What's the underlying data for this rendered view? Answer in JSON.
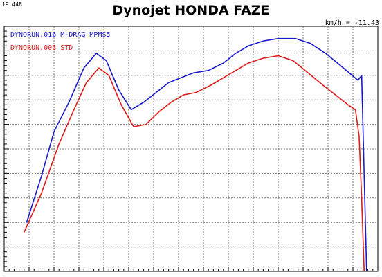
{
  "header": {
    "run_number": "19.448",
    "title": "Dynojet HONDA FAZE",
    "speed_readout": "km/h = -11.43"
  },
  "chart_data": {
    "type": "line",
    "title": "Dynojet HONDA FAZE",
    "xlabel": "",
    "ylabel": "",
    "grid": true,
    "legend": "top-left",
    "xlim": [
      0,
      15
    ],
    "ylim": [
      0,
      10
    ],
    "series": [
      {
        "name": "DYNORUN.016   M-DRAG MPMS5",
        "color": "#1a1acc",
        "x": [
          0.9,
          1.5,
          2.0,
          2.6,
          3.2,
          3.7,
          4.1,
          4.6,
          5.1,
          5.6,
          6.1,
          6.6,
          7.1,
          7.6,
          8.2,
          8.8,
          9.3,
          9.8,
          10.4,
          11.0,
          11.7,
          12.3,
          12.9,
          13.5,
          14.2,
          14.35,
          14.45,
          14.55
        ],
        "values": [
          2.0,
          3.9,
          5.7,
          6.9,
          8.3,
          8.9,
          8.6,
          7.4,
          6.6,
          6.9,
          7.3,
          7.7,
          7.9,
          8.1,
          8.2,
          8.5,
          8.9,
          9.2,
          9.4,
          9.5,
          9.5,
          9.3,
          8.9,
          8.4,
          7.8,
          8.0,
          4.0,
          0.0
        ]
      },
      {
        "name": "DYNORUN.003   STD",
        "color": "#dd1a1a",
        "x": [
          0.8,
          1.5,
          2.2,
          2.8,
          3.3,
          3.8,
          4.2,
          4.7,
          5.2,
          5.7,
          6.2,
          6.7,
          7.2,
          7.7,
          8.3,
          8.8,
          9.3,
          9.8,
          10.4,
          11.0,
          11.6,
          12.2,
          12.8,
          13.3,
          13.8,
          14.1,
          14.25,
          14.35,
          14.45
        ],
        "values": [
          1.6,
          3.2,
          5.2,
          6.6,
          7.7,
          8.3,
          8.0,
          6.8,
          5.9,
          6.0,
          6.5,
          6.9,
          7.2,
          7.3,
          7.6,
          7.9,
          8.2,
          8.5,
          8.7,
          8.8,
          8.6,
          8.1,
          7.6,
          7.2,
          6.8,
          6.6,
          5.5,
          3.0,
          0.0
        ]
      }
    ]
  }
}
